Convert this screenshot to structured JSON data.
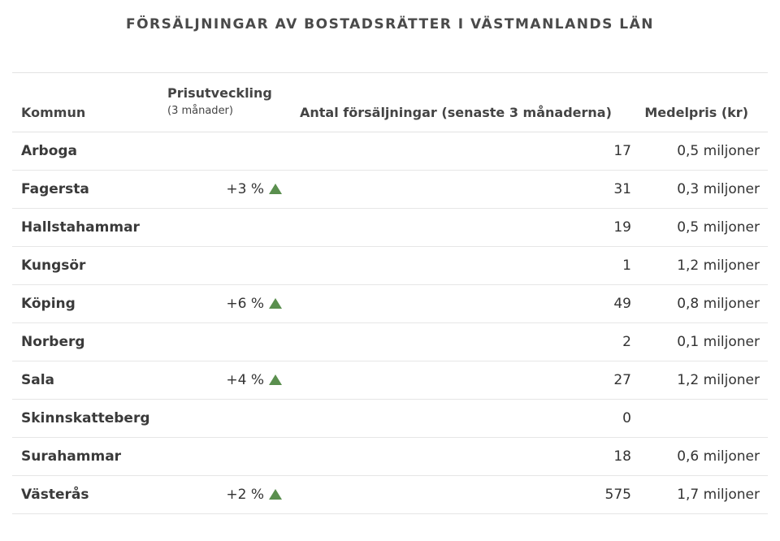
{
  "chart_data": {
    "type": "table",
    "title": "FÖRSÄLJNINGAR AV BOSTADSRÄTTER I VÄSTMANLANDS LÄN",
    "columns": {
      "kommun": "Kommun",
      "prisutveckling": "Prisutveckling",
      "prisutveckling_sub": "(3 månader)",
      "antal": "Antal försäljningar (senaste 3 månaderna)",
      "medelpris": "Medelpris (kr)"
    },
    "rows": [
      {
        "kommun": "Arboga",
        "change": "",
        "up": false,
        "sales": "17",
        "price": "0,5 miljoner"
      },
      {
        "kommun": "Fagersta",
        "change": "+3 %",
        "up": true,
        "sales": "31",
        "price": "0,3 miljoner"
      },
      {
        "kommun": "Hallstahammar",
        "change": "",
        "up": false,
        "sales": "19",
        "price": "0,5 miljoner"
      },
      {
        "kommun": "Kungsör",
        "change": "",
        "up": false,
        "sales": "1",
        "price": "1,2 miljoner"
      },
      {
        "kommun": "Köping",
        "change": "+6 %",
        "up": true,
        "sales": "49",
        "price": "0,8 miljoner"
      },
      {
        "kommun": "Norberg",
        "change": "",
        "up": false,
        "sales": "2",
        "price": "0,1 miljoner"
      },
      {
        "kommun": "Sala",
        "change": "+4 %",
        "up": true,
        "sales": "27",
        "price": "1,2 miljoner"
      },
      {
        "kommun": "Skinnskatteberg",
        "change": "",
        "up": false,
        "sales": "0",
        "price": ""
      },
      {
        "kommun": "Surahammar",
        "change": "",
        "up": false,
        "sales": "18",
        "price": "0,6 miljoner"
      },
      {
        "kommun": "Västerås",
        "change": "+2 %",
        "up": true,
        "sales": "575",
        "price": "1,7 miljoner"
      }
    ],
    "colors": {
      "up_arrow": "#5a8f4e",
      "divider": "#e3e3e3"
    },
    "icons": {
      "up": "triangle-up-icon"
    }
  }
}
